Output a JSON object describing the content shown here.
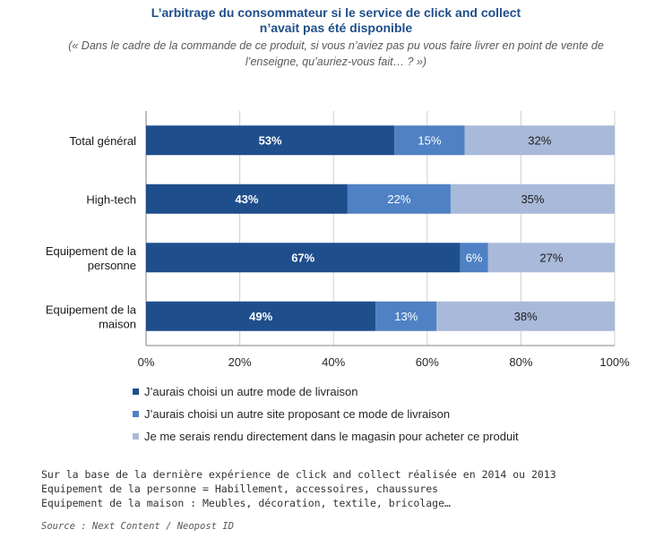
{
  "chart_data": {
    "type": "bar",
    "orientation": "horizontal",
    "stacked": "percent",
    "title_line1": "L’arbitrage du consommateur si le service de click and collect",
    "title_line2": "n’avait pas été disponible",
    "subtitle_line1": "(« Dans le cadre de la commande de ce produit, si vous n’aviez pas pu vous faire livrer en point de vente de",
    "subtitle_line2": "l’enseigne, qu’auriez-vous fait… ? »)",
    "categories": [
      [
        "Total général"
      ],
      [
        "High-tech"
      ],
      [
        "Equipement de la",
        "personne"
      ],
      [
        "Equipement de la",
        "maison"
      ]
    ],
    "series": [
      {
        "name": "J’aurais choisi un autre mode de livraison",
        "color": "#1f4e8c",
        "values": [
          53,
          43,
          67,
          49
        ]
      },
      {
        "name": "J’aurais choisi un autre site proposant ce mode de livraison",
        "color": "#4f81c4",
        "values": [
          15,
          22,
          6,
          13
        ]
      },
      {
        "name": "Je me serais rendu directement dans le magasin pour acheter ce produit",
        "color": "#a9b9d9",
        "values": [
          32,
          35,
          27,
          38
        ]
      }
    ],
    "xlim": [
      0,
      100
    ],
    "xticks": [
      "0%",
      "20%",
      "40%",
      "60%",
      "80%",
      "100%"
    ],
    "grid": true,
    "legend": "bottom"
  },
  "notes": [
    "Sur la base de la dernière expérience de click and collect réalisée en 2014 ou 2013",
    "Equipement de la personne = Habillement, accessoires, chaussures",
    "Equipement de la maison : Meubles, décoration, textile, bricolage…"
  ],
  "source": "Source : Next Content / Neopost ID"
}
